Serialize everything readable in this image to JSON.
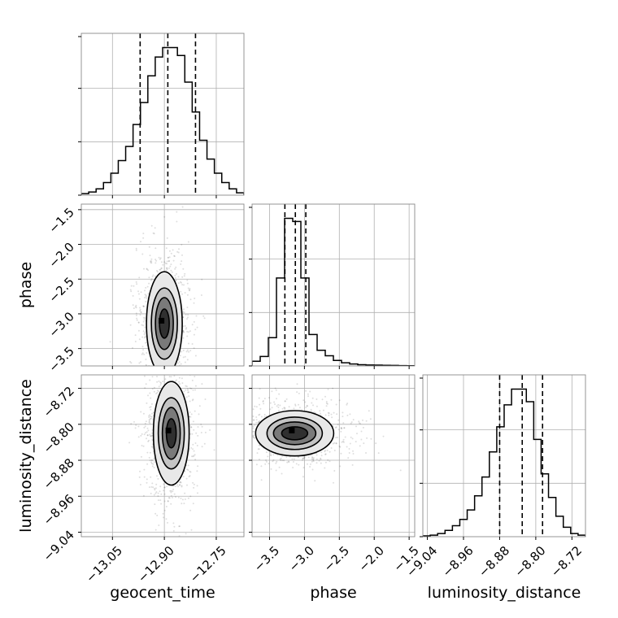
{
  "chart_data": {
    "type": "corner",
    "params": [
      "geocent_time",
      "phase",
      "luminosity_distance"
    ],
    "axis_labels": {
      "geocent_time": "geocent_time",
      "phase": "phase",
      "luminosity_distance": "luminosity_distance"
    },
    "ranges": {
      "geocent_time": [
        -13.14,
        -12.67
      ],
      "phase": [
        -3.75,
        -1.42
      ],
      "luminosity_distance": [
        -9.05,
        -8.69
      ]
    },
    "ticks": {
      "geocent_time": [
        {
          "v": -13.05,
          "t": "−13.05"
        },
        {
          "v": -12.9,
          "t": "−12.90"
        },
        {
          "v": -12.75,
          "t": "−12.75"
        }
      ],
      "phase": [
        {
          "v": -3.5,
          "t": "−3.5"
        },
        {
          "v": -3.0,
          "t": "−3.0"
        },
        {
          "v": -2.5,
          "t": "−2.5"
        },
        {
          "v": -2.0,
          "t": "−2.0"
        },
        {
          "v": -1.5,
          "t": "−1.5"
        }
      ],
      "luminosity_distance": [
        {
          "v": -9.04,
          "t": "−9.04"
        },
        {
          "v": -8.96,
          "t": "−8.96"
        },
        {
          "v": -8.88,
          "t": "−8.88"
        },
        {
          "v": -8.8,
          "t": "−8.80"
        },
        {
          "v": -8.72,
          "t": "−8.72"
        }
      ]
    },
    "quantiles": {
      "geocent_time": [
        -12.97,
        -12.89,
        -12.81
      ],
      "phase": [
        -3.28,
        -3.13,
        -2.98
      ],
      "luminosity_distance": [
        -8.88,
        -8.83,
        -8.785
      ]
    },
    "histograms": {
      "geocent_time": [
        0.01,
        0.02,
        0.04,
        0.08,
        0.14,
        0.22,
        0.31,
        0.45,
        0.59,
        0.76,
        0.88,
        0.94,
        0.94,
        0.89,
        0.72,
        0.53,
        0.35,
        0.23,
        0.14,
        0.08,
        0.04,
        0.015
      ],
      "phase": [
        0.03,
        0.06,
        0.18,
        0.56,
        0.94,
        0.92,
        0.56,
        0.2,
        0.1,
        0.065,
        0.035,
        0.02,
        0.012,
        0.008,
        0.006,
        0.005,
        0.004,
        0.003,
        0.002,
        0.001
      ],
      "luminosity_distance": [
        0.005,
        0.01,
        0.02,
        0.04,
        0.07,
        0.11,
        0.17,
        0.26,
        0.38,
        0.54,
        0.7,
        0.84,
        0.94,
        0.94,
        0.86,
        0.62,
        0.4,
        0.25,
        0.13,
        0.06,
        0.02,
        0.01
      ]
    },
    "hist_ymax": 1.0,
    "centers": {
      "geocent_time|phase": [
        -12.9,
        -3.14
      ],
      "geocent_time|luminosity_distance": [
        -12.88,
        -8.82
      ],
      "phase|luminosity_distance": [
        -3.14,
        -8.82
      ]
    },
    "contour_levels": [
      {
        "rx": [
          0.03,
          0.08
        ],
        "ry": [
          0.09,
          0.04
        ]
      },
      {
        "rx": [
          0.055,
          0.13
        ],
        "ry": [
          0.16,
          0.07
        ]
      },
      {
        "rx": [
          0.08,
          0.17
        ],
        "ry": [
          0.22,
          0.1
        ]
      },
      {
        "rx": [
          0.11,
          0.24
        ],
        "ry": [
          0.32,
          0.14
        ]
      }
    ],
    "grid": true
  }
}
